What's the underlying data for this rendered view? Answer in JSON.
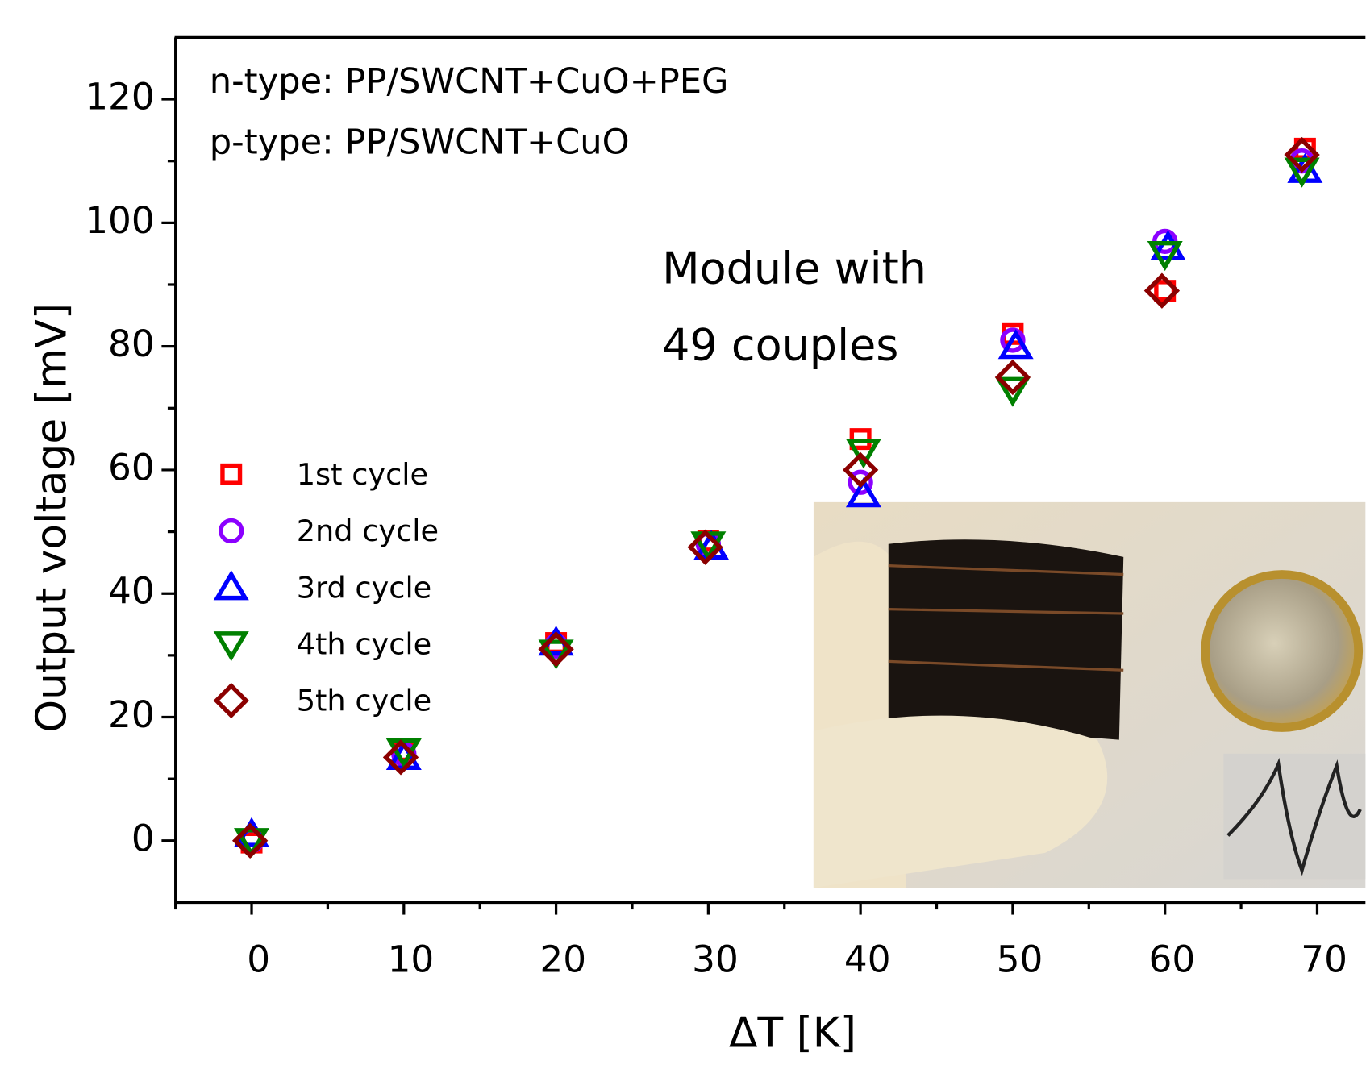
{
  "chart_data": {
    "type": "scatter",
    "annotations": [
      "n-type: PP/SWCNT+CuO+PEG",
      "p-type: PP/SWCNT+CuO",
      "Module with",
      "49 couples"
    ],
    "xlabel": "ΔT [K]",
    "ylabel": "Output voltage [mV]",
    "xlim": [
      -5,
      73
    ],
    "ylim": [
      -10,
      130
    ],
    "xticks": [
      0,
      10,
      20,
      30,
      40,
      50,
      60,
      70
    ],
    "yticks": [
      0,
      20,
      40,
      60,
      80,
      100,
      120
    ],
    "series": [
      {
        "name": "1st cycle",
        "color": "#ff0000",
        "marker": "square",
        "x": [
          0,
          10,
          20,
          30,
          40,
          50,
          60,
          69.2
        ],
        "values": [
          -0.3,
          14.5,
          32,
          48.5,
          65,
          82,
          89,
          112
        ]
      },
      {
        "name": "2nd cycle",
        "color": "#8b00ff",
        "marker": "circle",
        "x": [
          0,
          10,
          20,
          30,
          40,
          50,
          60,
          69
        ],
        "values": [
          0,
          14,
          31.5,
          48,
          58,
          81,
          97,
          110
        ]
      },
      {
        "name": "3rd cycle",
        "color": "#0000ff",
        "marker": "triangle-up",
        "x": [
          0,
          10,
          20,
          30.2,
          40.2,
          50.2,
          60.2,
          69.2
        ],
        "values": [
          1,
          13.5,
          32,
          47.5,
          56,
          80,
          96,
          108.5
        ]
      },
      {
        "name": "4th cycle",
        "color": "#008000",
        "marker": "triangle-down",
        "x": [
          0,
          10,
          20,
          30,
          40.2,
          50,
          60,
          69
        ],
        "values": [
          0,
          14.5,
          30.5,
          48,
          63,
          73,
          95,
          108.5
        ]
      },
      {
        "name": "5th cycle",
        "color": "#8b0000",
        "marker": "diamond",
        "x": [
          -0.1,
          9.8,
          20,
          29.8,
          40,
          50,
          59.8,
          69
        ],
        "values": [
          0,
          13.5,
          31,
          47.5,
          60,
          75,
          89,
          111
        ]
      }
    ]
  }
}
